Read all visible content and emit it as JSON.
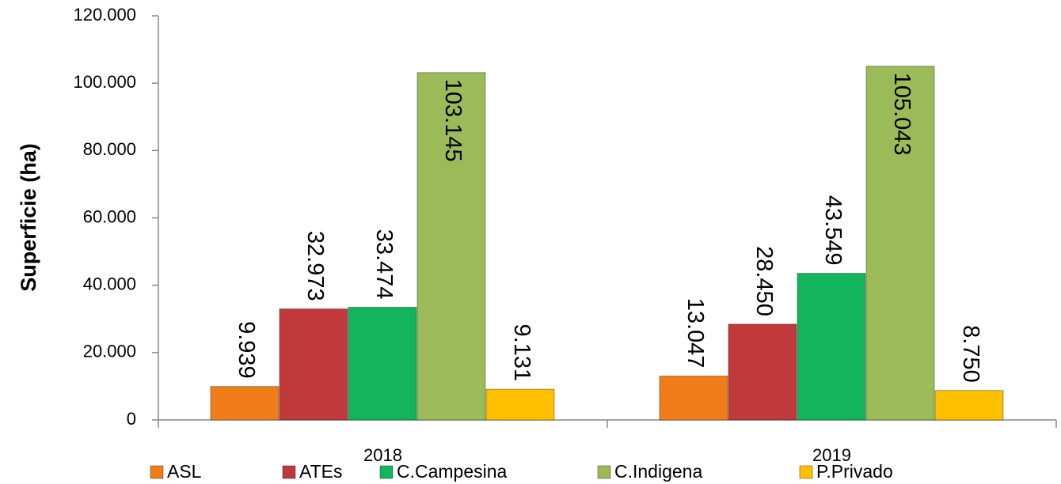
{
  "chart_data": {
    "type": "bar",
    "ylabel": "Superficie (ha)",
    "categories": [
      "2018",
      "2019"
    ],
    "series": [
      {
        "name": "ASL",
        "color": "#f07d1a",
        "values": [
          9939,
          13047
        ],
        "value_labels": [
          "9.939",
          "13.047"
        ]
      },
      {
        "name": "ATEs",
        "color": "#c0393b",
        "values": [
          32973,
          28450
        ],
        "value_labels": [
          "32.973",
          "28.450"
        ]
      },
      {
        "name": "C.Campesina",
        "color": "#12b55c",
        "values": [
          33474,
          43549
        ],
        "value_labels": [
          "33.474",
          "43.549"
        ]
      },
      {
        "name": "C.Indigena",
        "color": "#9bbb59",
        "values": [
          103145,
          105043
        ],
        "value_labels": [
          "103.145",
          "105.043"
        ]
      },
      {
        "name": "P.Privado",
        "color": "#ffc000",
        "values": [
          9131,
          8750
        ],
        "value_labels": [
          "9.131",
          "8.750"
        ]
      }
    ],
    "ylim": [
      0,
      120000
    ],
    "yticks": [
      0,
      {
        "value": 20000,
        "label": "20.000"
      },
      {
        "value": 40000,
        "label": "40.000"
      },
      {
        "value": 60000,
        "label": "60.000"
      },
      {
        "value": 80000,
        "label": "80.000"
      },
      {
        "value": 100000,
        "label": "100.000"
      },
      {
        "value": 120000,
        "label": "120.000"
      }
    ],
    "grid": false,
    "legend": "bottom"
  }
}
